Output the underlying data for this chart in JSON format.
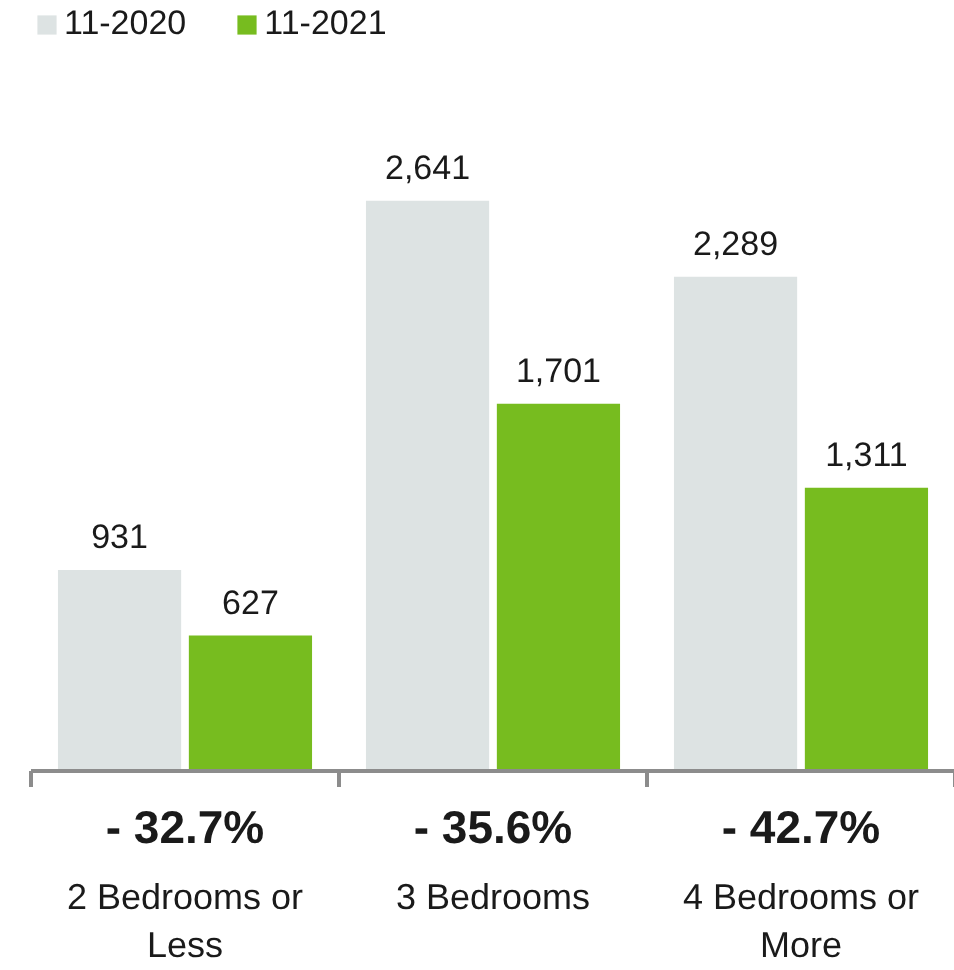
{
  "chart_data": {
    "type": "bar",
    "categories": [
      "2 Bedrooms or Less",
      "3 Bedrooms",
      "4 Bedrooms or More"
    ],
    "series": [
      {
        "name": "11-2020",
        "color": "#dde3e3",
        "values": [
          931,
          2641,
          2289
        ],
        "value_labels": [
          "931",
          "2,641",
          "2,289"
        ]
      },
      {
        "name": "11-2021",
        "color": "#77bc1f",
        "values": [
          627,
          1701,
          1311
        ],
        "value_labels": [
          "627",
          "1,701",
          "1,311"
        ]
      }
    ],
    "legend": "top left",
    "annotations": [
      "- 32.7%",
      "- 35.6%",
      "- 42.7%"
    ]
  }
}
